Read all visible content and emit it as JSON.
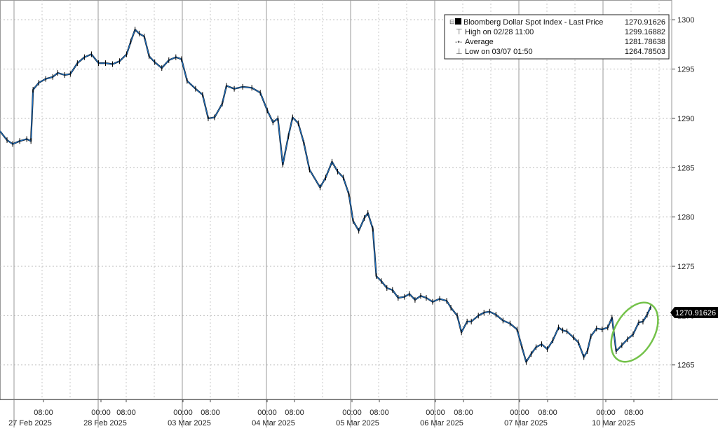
{
  "chart_data": {
    "type": "line",
    "title": "",
    "xlabel": "",
    "ylabel": "",
    "ylim": [
      1261.5,
      1302
    ],
    "yticks": [
      1265,
      1270,
      1275,
      1280,
      1285,
      1290,
      1295,
      1300
    ],
    "x_time_labels": [
      "08:00",
      "00:00",
      "08:00",
      "00:00",
      "08:00",
      "00:00",
      "08:00",
      "00:00",
      "08:00",
      "00:00",
      "08:00",
      "00:00",
      "08:00",
      "00:00",
      "08:00"
    ],
    "x_date_labels": [
      "27 Feb 2025",
      "28 Feb 2025",
      "03 Mar 2025",
      "04 Mar 2025",
      "05 Mar 2025",
      "06 Mar 2025",
      "07 Mar 2025",
      "10 Mar 2025"
    ],
    "legend": {
      "series_label": "Bloomberg Dollar Spot Index - Last Price",
      "series_value": "1270.91626",
      "high_label": "High on 02/28 11:00",
      "high_value": "1299.16882",
      "avg_label": "Average",
      "avg_value": "1281.78638",
      "low_label": "Low on 03/07 01:50",
      "low_value": "1264.78503"
    },
    "last_price_label": "1270.91626",
    "series": [
      {
        "name": "Bloomberg Dollar Spot Index - Last Price",
        "color": "#1f6fbf",
        "points": [
          [
            0,
            1288.7
          ],
          [
            10,
            1287.8
          ],
          [
            18,
            1287.4
          ],
          [
            28,
            1287.7
          ],
          [
            38,
            1287.9
          ],
          [
            44,
            1287.7
          ],
          [
            47,
            1292.9
          ],
          [
            55,
            1293.6
          ],
          [
            65,
            1294.0
          ],
          [
            75,
            1294.2
          ],
          [
            82,
            1294.6
          ],
          [
            92,
            1294.4
          ],
          [
            100,
            1294.5
          ],
          [
            110,
            1295.6
          ],
          [
            120,
            1296.2
          ],
          [
            130,
            1296.5
          ],
          [
            140,
            1295.6
          ],
          [
            150,
            1295.6
          ],
          [
            160,
            1295.5
          ],
          [
            170,
            1295.8
          ],
          [
            180,
            1296.5
          ],
          [
            186,
            1297.8
          ],
          [
            192,
            1299.0
          ],
          [
            198,
            1298.6
          ],
          [
            205,
            1298.3
          ],
          [
            212,
            1296.3
          ],
          [
            220,
            1295.7
          ],
          [
            230,
            1295.1
          ],
          [
            240,
            1295.9
          ],
          [
            250,
            1296.2
          ],
          [
            258,
            1296.0
          ],
          [
            266,
            1293.8
          ],
          [
            278,
            1293.0
          ],
          [
            288,
            1292.4
          ],
          [
            296,
            1290.0
          ],
          [
            305,
            1290.1
          ],
          [
            316,
            1291.5
          ],
          [
            322,
            1293.3
          ],
          [
            333,
            1293.0
          ],
          [
            345,
            1293.2
          ],
          [
            358,
            1293.1
          ],
          [
            370,
            1292.6
          ],
          [
            380,
            1290.8
          ],
          [
            388,
            1289.6
          ],
          [
            395,
            1290.0
          ],
          [
            402,
            1285.3
          ],
          [
            410,
            1288.2
          ],
          [
            416,
            1290.1
          ],
          [
            424,
            1289.5
          ],
          [
            432,
            1287.5
          ],
          [
            440,
            1284.8
          ],
          [
            455,
            1283.0
          ],
          [
            463,
            1284.0
          ],
          [
            472,
            1285.6
          ],
          [
            480,
            1284.6
          ],
          [
            488,
            1284.0
          ],
          [
            496,
            1282.3
          ],
          [
            502,
            1279.6
          ],
          [
            510,
            1278.6
          ],
          [
            518,
            1279.9
          ],
          [
            523,
            1280.4
          ],
          [
            530,
            1278.8
          ],
          [
            535,
            1274.0
          ],
          [
            542,
            1273.5
          ],
          [
            550,
            1272.8
          ],
          [
            558,
            1272.6
          ],
          [
            566,
            1271.8
          ],
          [
            575,
            1271.9
          ],
          [
            582,
            1272.2
          ],
          [
            590,
            1271.6
          ],
          [
            598,
            1272.0
          ],
          [
            606,
            1271.8
          ],
          [
            615,
            1271.4
          ],
          [
            625,
            1271.7
          ],
          [
            635,
            1271.5
          ],
          [
            641,
            1270.8
          ],
          [
            650,
            1270.0
          ],
          [
            656,
            1268.3
          ],
          [
            664,
            1269.4
          ],
          [
            670,
            1269.4
          ],
          [
            680,
            1270.0
          ],
          [
            688,
            1270.3
          ],
          [
            696,
            1270.4
          ],
          [
            705,
            1270.1
          ],
          [
            715,
            1269.5
          ],
          [
            725,
            1269.2
          ],
          [
            735,
            1268.6
          ],
          [
            742,
            1266.8
          ],
          [
            748,
            1265.3
          ],
          [
            755,
            1266.1
          ],
          [
            762,
            1266.8
          ],
          [
            770,
            1267.1
          ],
          [
            778,
            1266.6
          ],
          [
            786,
            1267.5
          ],
          [
            794,
            1268.8
          ],
          [
            800,
            1268.5
          ],
          [
            806,
            1268.4
          ],
          [
            815,
            1267.8
          ],
          [
            822,
            1267.3
          ],
          [
            830,
            1265.8
          ],
          [
            835,
            1266.4
          ],
          [
            840,
            1267.9
          ],
          [
            848,
            1268.7
          ],
          [
            856,
            1268.6
          ],
          [
            864,
            1268.8
          ],
          [
            870,
            1269.8
          ],
          [
            876,
            1266.4
          ],
          [
            884,
            1267.0
          ],
          [
            892,
            1267.6
          ],
          [
            900,
            1268.1
          ],
          [
            908,
            1269.3
          ],
          [
            914,
            1269.4
          ],
          [
            920,
            1270.1
          ],
          [
            925,
            1270.9
          ]
        ]
      }
    ],
    "annotation": {
      "shape": "ellipse",
      "color": "#74c24a"
    }
  }
}
